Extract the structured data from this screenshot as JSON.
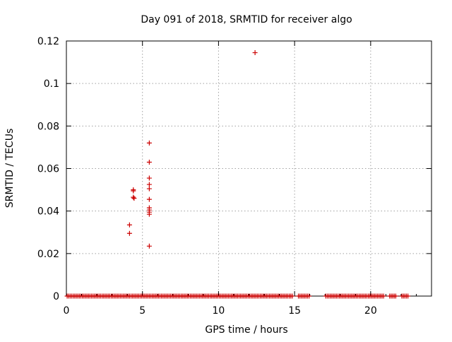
{
  "chart_data": {
    "type": "scatter",
    "title": "Day 091 of 2018, SRMTID for receiver algo",
    "xlabel": "GPS time / hours",
    "ylabel": "SRMTID / TECUs",
    "xlim": [
      0,
      24
    ],
    "ylim": [
      0,
      0.12
    ],
    "xticks": [
      0,
      5,
      10,
      15,
      20
    ],
    "xtick_labels": [
      "0",
      "5",
      "10",
      "15",
      "20"
    ],
    "yticks": [
      0,
      0.02,
      0.04,
      0.06,
      0.08,
      0.1,
      0.12
    ],
    "ytick_labels": [
      "0",
      "0.02",
      "0.04",
      "0.06",
      "0.08",
      "0.1",
      "0.12"
    ],
    "grid": true,
    "marker": "plus",
    "color": "#cc0000",
    "zero_coverage_intervals": [
      [
        0.05,
        14.85
      ],
      [
        15.25,
        15.95
      ],
      [
        17.05,
        20.85
      ],
      [
        21.25,
        21.65
      ],
      [
        22.05,
        22.45
      ]
    ],
    "zero_point_spacing_hours": 0.1,
    "series": [
      {
        "name": "SRMTID",
        "points": [
          [
            4.15,
            0.0335
          ],
          [
            4.15,
            0.0295
          ],
          [
            4.4,
            0.05
          ],
          [
            4.4,
            0.0495
          ],
          [
            4.4,
            0.0465
          ],
          [
            4.45,
            0.046
          ],
          [
            5.45,
            0.072
          ],
          [
            5.45,
            0.063
          ],
          [
            5.45,
            0.0555
          ],
          [
            5.45,
            0.0525
          ],
          [
            5.45,
            0.0505
          ],
          [
            5.45,
            0.0455
          ],
          [
            5.45,
            0.0415
          ],
          [
            5.45,
            0.0405
          ],
          [
            5.45,
            0.0395
          ],
          [
            5.45,
            0.0385
          ],
          [
            5.45,
            0.0235
          ],
          [
            12.4,
            0.1145
          ]
        ]
      }
    ]
  }
}
